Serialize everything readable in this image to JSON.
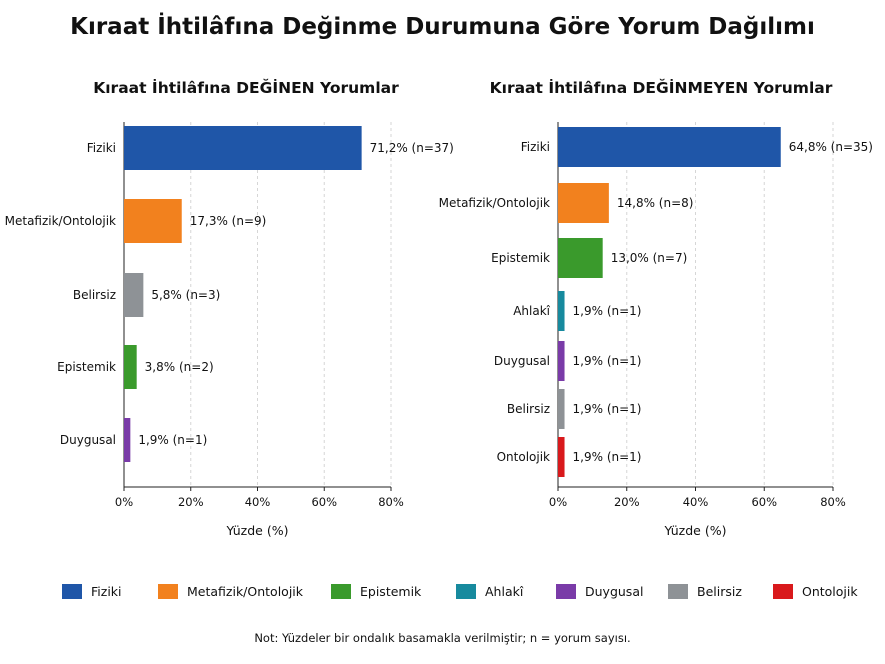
{
  "title": "Kıraat İhtilâfına Değinme Durumuna Göre Yorum Dağılımı",
  "colors": {
    "Fiziki": "#1f56a8",
    "Metafizik/Ontolojik": "#f2811e",
    "Epistemik": "#3a9a2c",
    "Ahlakî": "#178a9e",
    "Duygusal": "#7a3ba8",
    "Belirsiz": "#8e9296",
    "Ontolojik": "#d9191c"
  },
  "chart_data": [
    {
      "type": "bar",
      "orientation": "horizontal",
      "title": "Kıraat İhtilâfına DEĞİNEN Yorumlar",
      "xlabel": "Yüzde (%)",
      "xlim": [
        0,
        80
      ],
      "xticks": [
        0,
        20,
        40,
        60,
        80
      ],
      "xtick_labels": [
        "0%",
        "20%",
        "40%",
        "60%",
        "80%"
      ],
      "grid": "vertical dashed",
      "categories": [
        "Fiziki",
        "Metafizik/Ontolojik",
        "Belirsiz",
        "Epistemik",
        "Duygusal"
      ],
      "values": [
        71.2,
        17.3,
        5.8,
        3.8,
        1.9
      ],
      "data_labels": [
        "71,2% (n=37)",
        "17,3% (n=9)",
        "5,8% (n=3)",
        "3,8% (n=2)",
        "1,9% (n=1)"
      ]
    },
    {
      "type": "bar",
      "orientation": "horizontal",
      "title": "Kıraat İhtilâfına DEĞİNMEYEN Yorumlar",
      "xlabel": "Yüzde (%)",
      "xlim": [
        0,
        80
      ],
      "xticks": [
        0,
        20,
        40,
        60,
        80
      ],
      "xtick_labels": [
        "0%",
        "20%",
        "40%",
        "60%",
        "80%"
      ],
      "grid": "vertical dashed",
      "categories": [
        "Fiziki",
        "Metafizik/Ontolojik",
        "Epistemik",
        "Ahlakî",
        "Duygusal",
        "Belirsiz",
        "Ontolojik"
      ],
      "values": [
        64.8,
        14.8,
        13.0,
        1.9,
        1.9,
        1.9,
        1.9
      ],
      "data_labels": [
        "64,8% (n=35)",
        "14,8% (n=8)",
        "13,0% (n=7)",
        "1,9% (n=1)",
        "1,9% (n=1)",
        "1,9% (n=1)",
        "1,9% (n=1)"
      ]
    }
  ],
  "legend": [
    "Fiziki",
    "Metafizik/Ontolojik",
    "Epistemik",
    "Ahlakî",
    "Duygusal",
    "Belirsiz",
    "Ontolojik"
  ],
  "footnote": "Not: Yüzdeler bir ondalık basamakla verilmiştir; n = yorum sayısı."
}
